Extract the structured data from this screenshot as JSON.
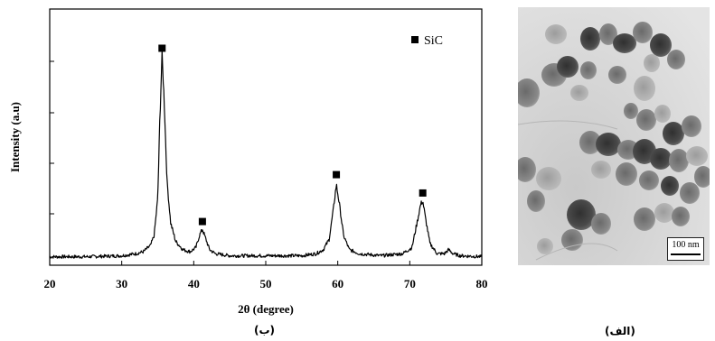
{
  "chart_data": {
    "type": "line",
    "title": "",
    "xlabel": "2θ (degree)",
    "ylabel": "Intensity (a.u)",
    "xlim": [
      20,
      80
    ],
    "ylim": [
      0,
      100
    ],
    "x_ticks": [
      "20",
      "30",
      "40",
      "50",
      "60",
      "70",
      "80"
    ],
    "y_ticks_labeled": false,
    "grid": false,
    "legend": {
      "position": "top-right",
      "entries": [
        {
          "marker": "square",
          "label": "SiC"
        }
      ]
    },
    "series": [
      {
        "name": "",
        "x": [
          20,
          25,
          30,
          32,
          33,
          34,
          34.5,
          35,
          35.3,
          35.6,
          35.9,
          36.3,
          36.8,
          37.5,
          38.5,
          39.5,
          40.3,
          40.8,
          41.2,
          41.6,
          42.2,
          43,
          45,
          50,
          55,
          57,
          58,
          58.8,
          59.4,
          59.8,
          60.2,
          60.8,
          61.6,
          63,
          66,
          69,
          70.3,
          71,
          71.5,
          71.8,
          72.2,
          72.8,
          73.8,
          74.8,
          75.4,
          76,
          77,
          80
        ],
        "values": [
          1.5,
          1.5,
          2,
          3,
          4,
          7,
          12,
          30,
          70,
          100,
          78,
          38,
          18,
          9,
          5,
          4,
          6,
          12,
          15,
          11,
          5,
          3,
          2,
          2,
          2,
          3,
          5,
          10,
          25,
          37,
          28,
          12,
          5,
          3,
          2,
          3,
          6,
          18,
          27,
          29,
          20,
          8,
          3,
          3,
          5,
          3,
          2,
          1.5
        ]
      }
    ],
    "peak_markers": [
      {
        "x": 35.6,
        "y": 102
      },
      {
        "x": 41.2,
        "y": 17
      },
      {
        "x": 59.8,
        "y": 40
      },
      {
        "x": 71.8,
        "y": 31
      }
    ]
  },
  "captions": {
    "chart": "(ب)",
    "image": "(الف)"
  },
  "tem_image": {
    "scale_bar_label": "100 nm"
  },
  "colors": {
    "line": "#000000",
    "background": "#ffffff"
  }
}
